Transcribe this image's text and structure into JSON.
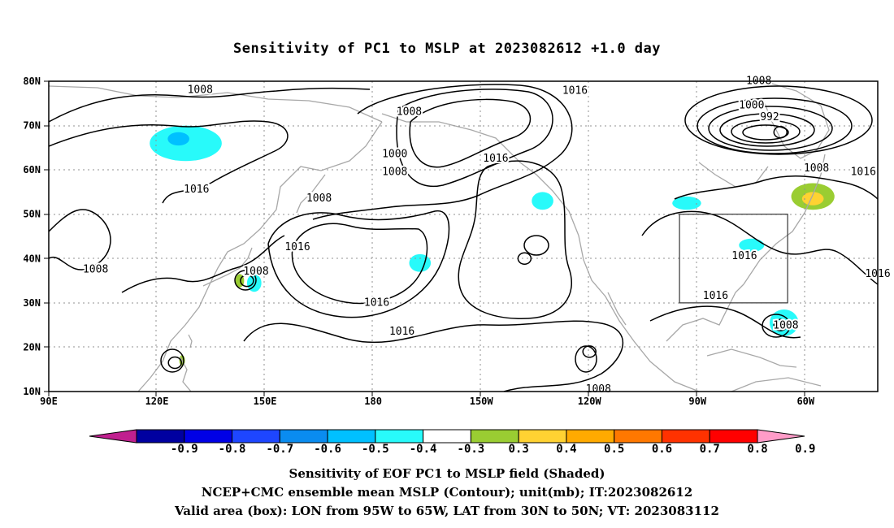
{
  "title": "Sensitivity of PC1 to MSLP at 2023082612 +1.0 day",
  "lat_labels": [
    "80N",
    "70N",
    "60N",
    "50N",
    "40N",
    "30N",
    "20N",
    "10N"
  ],
  "lon_labels": [
    "90E",
    "120E",
    "150E",
    "180",
    "150W",
    "120W",
    "90W",
    "60W"
  ],
  "contour_labels": [
    {
      "text": "1008",
      "lon": 132,
      "lat": 78
    },
    {
      "text": "1016",
      "lon": 236,
      "lat": 77.8
    },
    {
      "text": "1008",
      "lon": 190,
      "lat": 73
    },
    {
      "text": "1008",
      "lon": 287,
      "lat": 80
    },
    {
      "text": "1000",
      "lon": 285,
      "lat": 74.5
    },
    {
      "text": "992",
      "lon": 290,
      "lat": 71.8
    },
    {
      "text": "1000",
      "lon": 186,
      "lat": 63.5
    },
    {
      "text": "1008",
      "lon": 186,
      "lat": 59.5
    },
    {
      "text": "1016",
      "lon": 214,
      "lat": 62.5
    },
    {
      "text": "1008",
      "lon": 303,
      "lat": 60.3
    },
    {
      "text": "1016",
      "lon": 316,
      "lat": 59.5
    },
    {
      "text": "1016",
      "lon": 131,
      "lat": 55.5
    },
    {
      "text": "1008",
      "lon": 165,
      "lat": 53.5
    },
    {
      "text": "1016",
      "lon": 159,
      "lat": 42.5
    },
    {
      "text": "1016",
      "lon": 283,
      "lat": 40.5
    },
    {
      "text": "1016",
      "lon": 320,
      "lat": 36.5
    },
    {
      "text": "1008",
      "lon": 103,
      "lat": 37.5
    },
    {
      "text": "1008",
      "lon": 147.5,
      "lat": 37
    },
    {
      "text": "1016",
      "lon": 181,
      "lat": 30
    },
    {
      "text": "1016",
      "lon": 275,
      "lat": 31.5
    },
    {
      "text": "1008",
      "lon": 294.5,
      "lat": 24.8
    },
    {
      "text": "1016",
      "lon": 188,
      "lat": 23.5
    },
    {
      "text": "1008",
      "lon": 242.5,
      "lat": 10.5
    }
  ],
  "pressure_centers": [
    {
      "name": "low-arctic-atlantic",
      "lon": 293,
      "lat": 68.5
    },
    {
      "name": "low-west-pacific",
      "lon": 145,
      "lat": 35
    },
    {
      "name": "low-south-china-sea",
      "lon": 125,
      "lat": 16.5
    },
    {
      "name": "low-atlantic",
      "lon": 293,
      "lat": 25
    },
    {
      "name": "high-central-pacific",
      "lon": 222,
      "lat": 40
    },
    {
      "name": "high-east-pacific",
      "lon": 240,
      "lat": 19
    }
  ],
  "valid_box": {
    "lon_min": 265,
    "lon_max": 295,
    "lat_min": 30,
    "lat_max": 50
  },
  "colorbar": {
    "labels": [
      "-0.9",
      "-0.8",
      "-0.7",
      "-0.6",
      "-0.5",
      "-0.4",
      "-0.3",
      "0.3",
      "0.4",
      "0.5",
      "0.6",
      "0.7",
      "0.8",
      "0.9"
    ],
    "colors": [
      "#c0208f",
      "#0000a0",
      "#0000e6",
      "#1e46ff",
      "#0a8cf0",
      "#00c0ff",
      "#28fafa",
      "#ffffff",
      "#9acd32",
      "#ffd232",
      "#ffaa00",
      "#ff7800",
      "#ff3200",
      "#ff0000",
      "#ff9cc8"
    ]
  },
  "sensitivity_patches": [
    {
      "name": "cyan-east-siberia",
      "color": "#28fafa",
      "lon": 128,
      "lat": 66,
      "rx": 10,
      "ry": 4
    },
    {
      "name": "blue-east-siberia",
      "color": "#00c0ff",
      "lon": 126,
      "lat": 67,
      "rx": 3,
      "ry": 1.5
    },
    {
      "name": "cyan-gulf-alaska",
      "color": "#28fafa",
      "lon": 227,
      "lat": 53,
      "rx": 3,
      "ry": 2
    },
    {
      "name": "cyan-north-pacific",
      "color": "#28fafa",
      "lon": 193,
      "lat": 39,
      "rx": 3,
      "ry": 2
    },
    {
      "name": "cyan-labrador",
      "color": "#28fafa",
      "lon": 267,
      "lat": 52.5,
      "rx": 4,
      "ry": 1.5
    },
    {
      "name": "green-newfoundland",
      "color": "#9acd32",
      "lon": 302,
      "lat": 54,
      "rx": 6,
      "ry": 3
    },
    {
      "name": "yellow-newfoundland",
      "color": "#ffd232",
      "lon": 302,
      "lat": 53.5,
      "rx": 3,
      "ry": 1.5
    },
    {
      "name": "cyan-great-lakes",
      "color": "#28fafa",
      "lon": 285,
      "lat": 43,
      "rx": 3.5,
      "ry": 1.5
    },
    {
      "name": "cyan-west-atlantic",
      "color": "#28fafa",
      "lon": 294,
      "lat": 25.5,
      "rx": 4,
      "ry": 3
    },
    {
      "name": "cyan-japan",
      "color": "#28fafa",
      "lon": 147,
      "lat": 34.5,
      "rx": 2,
      "ry": 2
    },
    {
      "name": "green-japan",
      "color": "#9acd32",
      "lon": 143,
      "lat": 35,
      "rx": 1.2,
      "ry": 1.5
    },
    {
      "name": "green-south-china-sea",
      "color": "#9acd32",
      "lon": 127,
      "lat": 17,
      "rx": 0.8,
      "ry": 1.2
    }
  ],
  "captions": [
    "Sensitivity of EOF PC1 to MSLP field (Shaded)",
    "NCEP+CMC ensemble mean MSLP (Contour); unit(mb); IT:2023082612",
    "Valid area (box): LON from 95W to 65W, LAT from 30N to 50N; VT: 2023083112"
  ]
}
